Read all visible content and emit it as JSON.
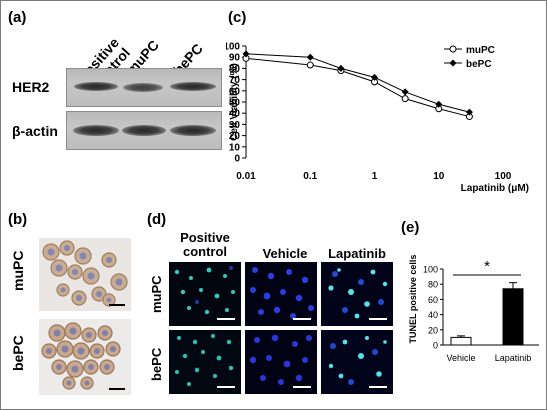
{
  "panel_labels": {
    "a": "(a)",
    "b": "(b)",
    "c": "(c)",
    "d": "(d)",
    "e": "(e)"
  },
  "western_blot": {
    "lanes": [
      "Positive control",
      "muPC",
      "bePC"
    ],
    "lane_label_lines": [
      [
        "Positive",
        "control"
      ],
      [
        "muPC"
      ],
      [
        "bePC"
      ]
    ],
    "rows": [
      "HER2",
      "β-actin"
    ]
  },
  "ihc": {
    "rows": [
      "muPC",
      "bePC"
    ]
  },
  "fluorescence": {
    "columns": [
      "Positive control",
      "Vehicle",
      "Lapatinib"
    ],
    "column_label_lines": [
      [
        "Positive",
        "control"
      ],
      [
        "Vehicle"
      ],
      [
        "Lapatinib"
      ]
    ],
    "rows": [
      "muPC",
      "bePC"
    ]
  },
  "chart_data": [
    {
      "type": "line",
      "panel": "(c)",
      "xlabel": "Lapatinib (μM)",
      "ylabel": "Cell Viability (%)",
      "xscale": "log",
      "xlim": [
        0.01,
        100
      ],
      "ylim": [
        0,
        100
      ],
      "xticks": [
        "0.01",
        "0.1",
        "1",
        "10",
        "100"
      ],
      "yticks": [
        "0",
        "10",
        "20",
        "30",
        "40",
        "50",
        "60",
        "70",
        "80",
        "90",
        "100"
      ],
      "legend_position": "top-right",
      "grid": false,
      "x": [
        0.01,
        0.1,
        0.3,
        1,
        3,
        10,
        30
      ],
      "series": [
        {
          "name": "muPC",
          "marker": "open-circle",
          "values": [
            89,
            83,
            78,
            68,
            53,
            44,
            37
          ],
          "errors": [
            2,
            2,
            3,
            2,
            2,
            2,
            2
          ]
        },
        {
          "name": "bePC",
          "marker": "filled-diamond",
          "values": [
            93,
            90,
            80,
            72,
            59,
            48,
            41
          ],
          "errors": [
            2,
            2,
            3,
            2,
            3,
            2,
            2
          ]
        }
      ]
    },
    {
      "type": "bar",
      "panel": "(e)",
      "ylabel": "TUNEL positive cells",
      "categories": [
        "Vehicle",
        "Lapatinib"
      ],
      "values": [
        10,
        74
      ],
      "errors": [
        2,
        8
      ],
      "ylim": [
        0,
        100
      ],
      "yticks": [
        "0",
        "20",
        "40",
        "60",
        "80",
        "100"
      ],
      "bar_colors": [
        "#ffffff",
        "#000000"
      ],
      "significance": "*"
    }
  ]
}
